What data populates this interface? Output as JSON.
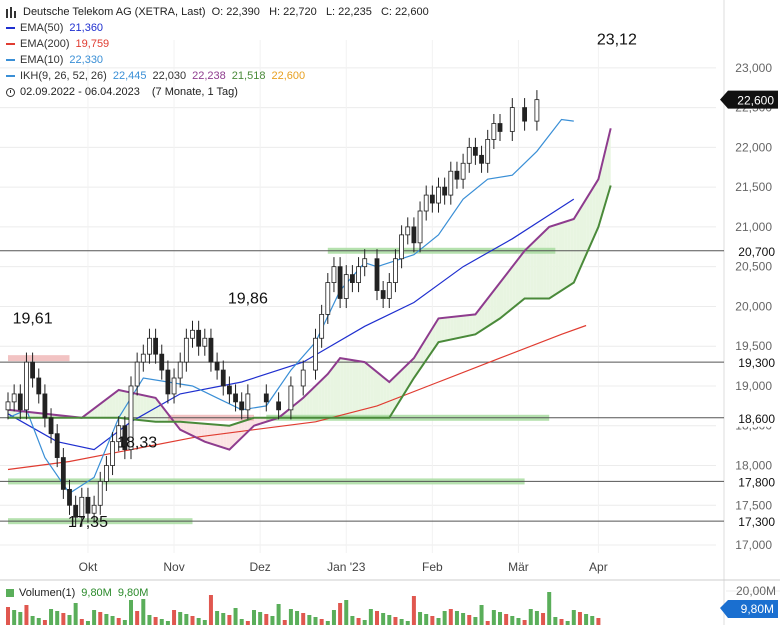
{
  "header": {
    "instrument": "Deutsche Telekom AG (XETRA, Last)",
    "ohlc": "O: 22,390   H: 22,720   L: 22,235   C: 22,600",
    "indicators": [
      {
        "label": "EMA(50)",
        "values": [
          "21,360"
        ],
        "color": "#1f2fcf"
      },
      {
        "label": "EMA(200)",
        "values": [
          "19,759"
        ],
        "color": "#e03c31"
      },
      {
        "label": "EMA(10)",
        "values": [
          "22,330"
        ],
        "color": "#3a8fd6"
      },
      {
        "label": "IKH(9, 26, 52, 26)",
        "values": [
          "22,445",
          "22,030",
          "22,238",
          "21,518",
          "22,600"
        ],
        "colors": [
          "#3a8fd6",
          "#333333",
          "#8e3c8e",
          "#4a8a3a",
          "#e8a020"
        ],
        "color": "#3a8fd6"
      }
    ],
    "period": "02.09.2022 - 06.04.2023",
    "duration": "(7 Monate, 1 Tag)"
  },
  "volume": {
    "label": "Volumen(1)",
    "values": [
      "9,80M",
      "9,80M"
    ],
    "axis_label": "20,00M",
    "current_badge": "9,80M",
    "colors": {
      "up": "#5aae5a",
      "down": "#e0574f"
    }
  },
  "chart_data": {
    "type": "candlestick",
    "title": "Deutsche Telekom AG (XETRA, Last)",
    "y_ticks": [
      "17,000",
      "17,500",
      "18,000",
      "18,500",
      "19,000",
      "19,500",
      "20,000",
      "20,500",
      "21,000",
      "21,500",
      "22,000",
      "22,500",
      "23,000"
    ],
    "x_ticks": [
      "Okt",
      "Nov",
      "Dez",
      "Jan '23",
      "Feb",
      "Mär",
      "Apr"
    ],
    "ylim": [
      16.9,
      23.35
    ],
    "annotations": [
      "19,61",
      "18,33",
      "17,35",
      "19,86",
      "23,12"
    ],
    "horizontal_levels": [
      {
        "label": "20,700",
        "value": 20.7,
        "style": "line"
      },
      {
        "label": "19,300",
        "value": 19.3,
        "style": "line"
      },
      {
        "label": "18,600",
        "value": 18.6,
        "style": "line"
      },
      {
        "label": "17,800",
        "value": 17.8,
        "style": "line"
      },
      {
        "label": "17,300",
        "value": 17.3,
        "style": "line"
      }
    ],
    "last_price_badge": "22,600",
    "colors": {
      "up": "#ffffff",
      "down": "#222222",
      "cloud_up": "#e8f5e1",
      "cloud_down": "#fbe3e3",
      "zone_green": "#a8dca0",
      "zone_red": "#f0b8b8"
    },
    "series": [
      {
        "name": "EMA(50)",
        "color": "#1f2fcf",
        "points": [
          [
            0,
            18.65
          ],
          [
            8,
            18.3
          ],
          [
            14,
            18.2
          ],
          [
            20,
            18.55
          ],
          [
            28,
            18.9
          ],
          [
            38,
            19.05
          ],
          [
            48,
            19.3
          ],
          [
            58,
            19.75
          ],
          [
            66,
            20.05
          ],
          [
            74,
            20.5
          ],
          [
            82,
            20.85
          ],
          [
            88,
            21.15
          ],
          [
            92,
            21.35
          ]
        ]
      },
      {
        "name": "EMA(200)",
        "color": "#e03c31",
        "points": [
          [
            0,
            17.95
          ],
          [
            10,
            18.05
          ],
          [
            20,
            18.2
          ],
          [
            30,
            18.35
          ],
          [
            40,
            18.45
          ],
          [
            50,
            18.55
          ],
          [
            60,
            18.75
          ],
          [
            70,
            19.05
          ],
          [
            80,
            19.35
          ],
          [
            90,
            19.65
          ],
          [
            94,
            19.76
          ]
        ]
      },
      {
        "name": "EMA(10)",
        "color": "#3a8fd6",
        "points": [
          [
            0,
            18.6
          ],
          [
            3,
            18.7
          ],
          [
            6,
            18.1
          ],
          [
            10,
            17.65
          ],
          [
            14,
            17.85
          ],
          [
            18,
            18.6
          ],
          [
            22,
            19.1
          ],
          [
            26,
            19.05
          ],
          [
            30,
            19.0
          ],
          [
            34,
            18.85
          ],
          [
            38,
            18.7
          ],
          [
            42,
            18.75
          ],
          [
            46,
            19.2
          ],
          [
            50,
            19.55
          ],
          [
            54,
            20.2
          ],
          [
            58,
            20.55
          ],
          [
            60,
            20.5
          ],
          [
            62,
            20.55
          ],
          [
            66,
            20.65
          ],
          [
            70,
            20.9
          ],
          [
            74,
            21.35
          ],
          [
            78,
            21.6
          ],
          [
            82,
            21.65
          ],
          [
            86,
            21.95
          ],
          [
            90,
            22.35
          ],
          [
            92,
            22.33
          ]
        ]
      },
      {
        "name": "IKH Senkou A",
        "color": "#8e3c8e",
        "points": [
          [
            0,
            18.7
          ],
          [
            12,
            18.6
          ],
          [
            18,
            18.95
          ],
          [
            24,
            18.85
          ],
          [
            28,
            18.45
          ],
          [
            32,
            18.3
          ],
          [
            36,
            18.2
          ],
          [
            40,
            18.5
          ],
          [
            44,
            18.6
          ],
          [
            48,
            18.85
          ],
          [
            52,
            19.15
          ],
          [
            54,
            19.35
          ],
          [
            58,
            19.3
          ],
          [
            62,
            19.05
          ],
          [
            66,
            19.35
          ],
          [
            70,
            19.85
          ],
          [
            76,
            19.9
          ],
          [
            80,
            20.3
          ],
          [
            84,
            20.7
          ],
          [
            88,
            21.0
          ],
          [
            92,
            21.1
          ],
          [
            96,
            21.6
          ],
          [
            98,
            22.24
          ]
        ]
      },
      {
        "name": "IKH Senkou B",
        "color": "#4a8a3a",
        "points": [
          [
            0,
            18.6
          ],
          [
            12,
            18.6
          ],
          [
            18,
            18.6
          ],
          [
            24,
            18.55
          ],
          [
            28,
            18.55
          ],
          [
            36,
            18.5
          ],
          [
            40,
            18.6
          ],
          [
            50,
            18.6
          ],
          [
            58,
            18.6
          ],
          [
            62,
            18.6
          ],
          [
            66,
            19.1
          ],
          [
            70,
            19.55
          ],
          [
            76,
            19.65
          ],
          [
            80,
            19.85
          ],
          [
            84,
            20.1
          ],
          [
            88,
            20.1
          ],
          [
            92,
            20.3
          ],
          [
            96,
            21.0
          ],
          [
            98,
            21.52
          ]
        ]
      }
    ]
  }
}
